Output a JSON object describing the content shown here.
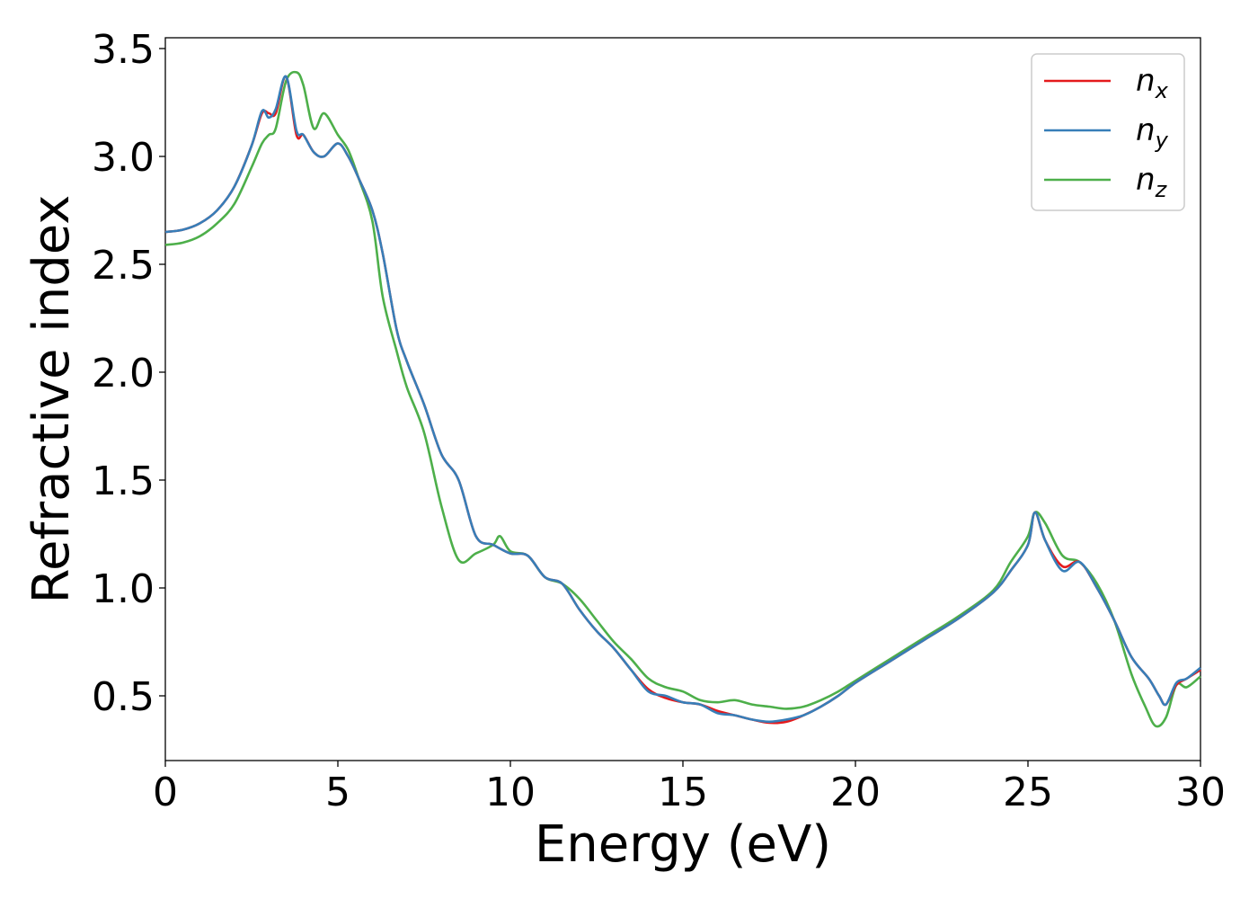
{
  "chart_data": {
    "type": "line",
    "title": "",
    "xlabel": "Energy (eV)",
    "ylabel": "Refractive index",
    "xlim": [
      0,
      30
    ],
    "ylim": [
      0.2,
      3.55
    ],
    "xticks": [
      0,
      5,
      10,
      15,
      20,
      25,
      30
    ],
    "yticks": [
      0.5,
      1.0,
      1.5,
      2.0,
      2.5,
      3.0,
      3.5
    ],
    "xtick_labels": [
      "0",
      "5",
      "10",
      "15",
      "20",
      "25",
      "30"
    ],
    "ytick_labels": [
      "0.5",
      "1.0",
      "1.5",
      "2.0",
      "2.5",
      "3.0",
      "3.5"
    ],
    "grid": false,
    "legend_position": "top-right",
    "series": [
      {
        "name": "n",
        "sub": "x",
        "color": "#e41a1c",
        "x": [
          0,
          0.5,
          1.0,
          1.5,
          2.0,
          2.5,
          2.8,
          3.0,
          3.2,
          3.5,
          3.8,
          4.0,
          4.3,
          4.6,
          5.0,
          5.3,
          5.6,
          6.0,
          6.3,
          6.7,
          7.0,
          7.5,
          8.0,
          8.5,
          9.0,
          9.5,
          10.0,
          10.5,
          11.0,
          11.5,
          12.0,
          12.5,
          13.0,
          13.5,
          14.0,
          14.5,
          15.0,
          15.5,
          16.0,
          16.5,
          17.0,
          17.5,
          18.0,
          18.5,
          19.0,
          19.5,
          20.0,
          21.0,
          22.0,
          23.0,
          24.0,
          24.5,
          25.0,
          25.2,
          25.5,
          26.0,
          26.5,
          27.0,
          27.5,
          28.0,
          28.5,
          28.8,
          29.0,
          29.3,
          29.6,
          30.0
        ],
        "y": [
          2.65,
          2.66,
          2.69,
          2.75,
          2.86,
          3.05,
          3.2,
          3.2,
          3.2,
          3.37,
          3.1,
          3.1,
          3.02,
          3.0,
          3.06,
          3.0,
          2.9,
          2.75,
          2.55,
          2.2,
          2.05,
          1.85,
          1.62,
          1.5,
          1.24,
          1.2,
          1.16,
          1.15,
          1.05,
          1.02,
          0.9,
          0.8,
          0.72,
          0.62,
          0.53,
          0.49,
          0.47,
          0.46,
          0.43,
          0.41,
          0.39,
          0.375,
          0.38,
          0.41,
          0.45,
          0.5,
          0.56,
          0.66,
          0.76,
          0.86,
          0.98,
          1.08,
          1.2,
          1.35,
          1.22,
          1.1,
          1.12,
          1.0,
          0.85,
          0.68,
          0.58,
          0.5,
          0.46,
          0.55,
          0.58,
          0.62
        ]
      },
      {
        "name": "n",
        "sub": "y",
        "color": "#377eb8",
        "x": [
          0,
          0.5,
          1.0,
          1.5,
          2.0,
          2.5,
          2.8,
          3.0,
          3.2,
          3.5,
          3.8,
          4.0,
          4.3,
          4.6,
          5.0,
          5.3,
          5.6,
          6.0,
          6.3,
          6.7,
          7.0,
          7.5,
          8.0,
          8.5,
          9.0,
          9.5,
          10.0,
          10.5,
          11.0,
          11.5,
          12.0,
          12.5,
          13.0,
          13.5,
          14.0,
          14.5,
          15.0,
          15.5,
          16.0,
          16.5,
          17.0,
          17.5,
          18.0,
          18.5,
          19.0,
          19.5,
          20.0,
          21.0,
          22.0,
          23.0,
          24.0,
          24.5,
          25.0,
          25.2,
          25.5,
          26.0,
          26.5,
          27.0,
          27.5,
          28.0,
          28.5,
          28.8,
          29.0,
          29.3,
          29.6,
          30.0
        ],
        "y": [
          2.65,
          2.66,
          2.69,
          2.75,
          2.86,
          3.05,
          3.21,
          3.18,
          3.22,
          3.37,
          3.12,
          3.1,
          3.02,
          3.0,
          3.06,
          3.0,
          2.9,
          2.75,
          2.55,
          2.2,
          2.05,
          1.85,
          1.62,
          1.5,
          1.24,
          1.2,
          1.16,
          1.15,
          1.05,
          1.02,
          0.9,
          0.8,
          0.72,
          0.62,
          0.52,
          0.5,
          0.47,
          0.46,
          0.42,
          0.41,
          0.39,
          0.38,
          0.39,
          0.41,
          0.45,
          0.5,
          0.56,
          0.66,
          0.76,
          0.86,
          0.98,
          1.08,
          1.2,
          1.35,
          1.22,
          1.08,
          1.12,
          1.0,
          0.85,
          0.68,
          0.58,
          0.5,
          0.46,
          0.56,
          0.58,
          0.63
        ]
      },
      {
        "name": "n",
        "sub": "z",
        "color": "#4daf4a",
        "x": [
          0,
          0.5,
          1.0,
          1.5,
          2.0,
          2.5,
          2.8,
          3.0,
          3.2,
          3.5,
          3.8,
          4.0,
          4.3,
          4.6,
          5.0,
          5.3,
          5.6,
          6.0,
          6.3,
          6.7,
          7.0,
          7.5,
          8.0,
          8.5,
          9.0,
          9.5,
          9.7,
          10.0,
          10.5,
          11.0,
          11.5,
          12.0,
          12.5,
          13.0,
          13.5,
          14.0,
          14.5,
          15.0,
          15.5,
          16.0,
          16.5,
          17.0,
          17.5,
          18.0,
          18.5,
          19.0,
          19.5,
          20.0,
          21.0,
          22.0,
          23.0,
          24.0,
          24.5,
          25.0,
          25.2,
          25.5,
          26.0,
          26.5,
          27.0,
          27.5,
          28.0,
          28.4,
          28.7,
          29.0,
          29.3,
          29.6,
          30.0
        ],
        "y": [
          2.59,
          2.6,
          2.63,
          2.69,
          2.78,
          2.95,
          3.06,
          3.1,
          3.13,
          3.35,
          3.39,
          3.33,
          3.13,
          3.2,
          3.1,
          3.03,
          2.9,
          2.7,
          2.35,
          2.1,
          1.93,
          1.72,
          1.38,
          1.13,
          1.16,
          1.2,
          1.24,
          1.17,
          1.15,
          1.05,
          1.02,
          0.95,
          0.85,
          0.75,
          0.67,
          0.58,
          0.54,
          0.52,
          0.48,
          0.47,
          0.48,
          0.46,
          0.45,
          0.44,
          0.45,
          0.48,
          0.52,
          0.57,
          0.67,
          0.77,
          0.87,
          0.99,
          1.12,
          1.24,
          1.35,
          1.3,
          1.15,
          1.12,
          1.02,
          0.85,
          0.6,
          0.45,
          0.36,
          0.4,
          0.55,
          0.54,
          0.59
        ]
      }
    ]
  }
}
